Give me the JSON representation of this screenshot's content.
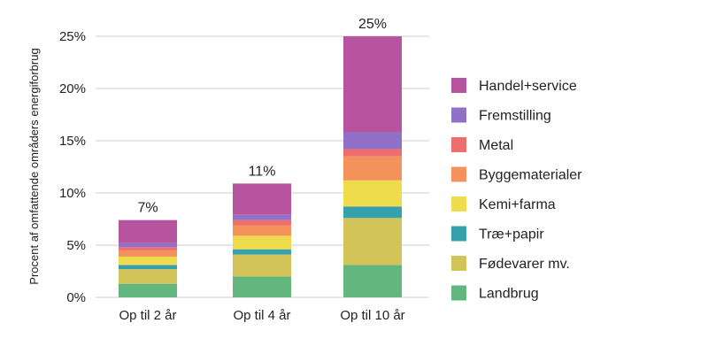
{
  "chart_data": {
    "type": "bar",
    "stacked": true,
    "categories": [
      "Op til 2 år",
      "Op til 4 år",
      "Op til 10 år"
    ],
    "totals_labels": [
      "7%",
      "11%",
      "25%"
    ],
    "ylabel": "Procent af omfattende områders energiforbrug",
    "ylim": [
      0,
      25
    ],
    "yticks": [
      0,
      5,
      10,
      15,
      20,
      25
    ],
    "ytick_labels": [
      "0%",
      "5%",
      "10%",
      "15%",
      "20%",
      "25%"
    ],
    "grid": true,
    "legend_position": "right",
    "series": [
      {
        "name": "Landbrug",
        "color": "#63b77e",
        "values": [
          1.3,
          2.0,
          3.1
        ]
      },
      {
        "name": "Fødevarer mv.",
        "color": "#d3c45a",
        "values": [
          1.4,
          2.1,
          4.5
        ]
      },
      {
        "name": "Træ+papir",
        "color": "#36a0ad",
        "values": [
          0.4,
          0.5,
          1.1
        ]
      },
      {
        "name": "Kemi+farma",
        "color": "#eedc4c",
        "values": [
          0.8,
          1.3,
          2.5
        ]
      },
      {
        "name": "Byggematerialer",
        "color": "#f4925c",
        "values": [
          0.6,
          1.0,
          2.3
        ]
      },
      {
        "name": "Metal",
        "color": "#ee6d6d",
        "values": [
          0.3,
          0.5,
          0.7
        ]
      },
      {
        "name": "Fremstilling",
        "color": "#8f72c7",
        "values": [
          0.4,
          0.5,
          1.6
        ]
      },
      {
        "name": "Handel+service",
        "color": "#b6549f",
        "values": [
          2.2,
          3.0,
          9.2
        ]
      }
    ]
  }
}
